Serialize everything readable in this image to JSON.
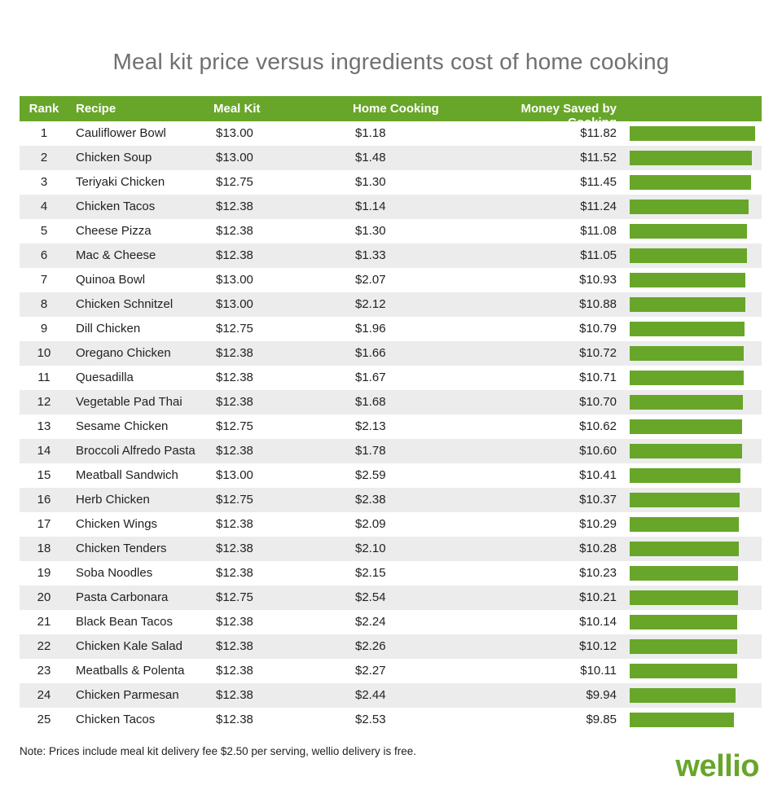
{
  "chart_data": {
    "type": "table",
    "title": "Meal kit price versus ingredients cost of home cooking",
    "columns": [
      "Rank",
      "Recipe",
      "Meal Kit",
      "Home Cooking",
      "Money Saved by Cooking"
    ],
    "rows": [
      {
        "rank": "1",
        "recipe": "Cauliflower Bowl",
        "meal_kit": "$13.00",
        "home": "$1.18",
        "saved": "$11.82",
        "saved_value": 11.82
      },
      {
        "rank": "2",
        "recipe": "Chicken Soup",
        "meal_kit": "$13.00",
        "home": "$1.48",
        "saved": "$11.52",
        "saved_value": 11.52
      },
      {
        "rank": "3",
        "recipe": "Teriyaki Chicken",
        "meal_kit": "$12.75",
        "home": "$1.30",
        "saved": "$11.45",
        "saved_value": 11.45
      },
      {
        "rank": "4",
        "recipe": "Chicken Tacos",
        "meal_kit": "$12.38",
        "home": "$1.14",
        "saved": "$11.24",
        "saved_value": 11.24
      },
      {
        "rank": "5",
        "recipe": "Cheese Pizza",
        "meal_kit": "$12.38",
        "home": "$1.30",
        "saved": "$11.08",
        "saved_value": 11.08
      },
      {
        "rank": "6",
        "recipe": "Mac & Cheese",
        "meal_kit": "$12.38",
        "home": "$1.33",
        "saved": "$11.05",
        "saved_value": 11.05
      },
      {
        "rank": "7",
        "recipe": "Quinoa Bowl",
        "meal_kit": "$13.00",
        "home": "$2.07",
        "saved": "$10.93",
        "saved_value": 10.93
      },
      {
        "rank": "8",
        "recipe": "Chicken Schnitzel",
        "meal_kit": "$13.00",
        "home": "$2.12",
        "saved": "$10.88",
        "saved_value": 10.88
      },
      {
        "rank": "9",
        "recipe": "Dill Chicken",
        "meal_kit": "$12.75",
        "home": "$1.96",
        "saved": "$10.79",
        "saved_value": 10.79
      },
      {
        "rank": "10",
        "recipe": "Oregano Chicken",
        "meal_kit": "$12.38",
        "home": "$1.66",
        "saved": "$10.72",
        "saved_value": 10.72
      },
      {
        "rank": "11",
        "recipe": "Quesadilla",
        "meal_kit": "$12.38",
        "home": "$1.67",
        "saved": "$10.71",
        "saved_value": 10.71
      },
      {
        "rank": "12",
        "recipe": "Vegetable Pad Thai",
        "meal_kit": "$12.38",
        "home": "$1.68",
        "saved": "$10.70",
        "saved_value": 10.7
      },
      {
        "rank": "13",
        "recipe": "Sesame Chicken",
        "meal_kit": "$12.75",
        "home": "$2.13",
        "saved": "$10.62",
        "saved_value": 10.62
      },
      {
        "rank": "14",
        "recipe": "Broccoli Alfredo Pasta",
        "meal_kit": "$12.38",
        "home": "$1.78",
        "saved": "$10.60",
        "saved_value": 10.6
      },
      {
        "rank": "15",
        "recipe": "Meatball Sandwich",
        "meal_kit": "$13.00",
        "home": "$2.59",
        "saved": "$10.41",
        "saved_value": 10.41
      },
      {
        "rank": "16",
        "recipe": "Herb Chicken",
        "meal_kit": "$12.75",
        "home": "$2.38",
        "saved": "$10.37",
        "saved_value": 10.37
      },
      {
        "rank": "17",
        "recipe": "Chicken Wings",
        "meal_kit": "$12.38",
        "home": "$2.09",
        "saved": "$10.29",
        "saved_value": 10.29
      },
      {
        "rank": "18",
        "recipe": "Chicken Tenders",
        "meal_kit": "$12.38",
        "home": "$2.10",
        "saved": "$10.28",
        "saved_value": 10.28
      },
      {
        "rank": "19",
        "recipe": "Soba Noodles",
        "meal_kit": "$12.38",
        "home": "$2.15",
        "saved": "$10.23",
        "saved_value": 10.23
      },
      {
        "rank": "20",
        "recipe": "Pasta Carbonara",
        "meal_kit": "$12.75",
        "home": "$2.54",
        "saved": "$10.21",
        "saved_value": 10.21
      },
      {
        "rank": "21",
        "recipe": "Black Bean Tacos",
        "meal_kit": "$12.38",
        "home": "$2.24",
        "saved": "$10.14",
        "saved_value": 10.14
      },
      {
        "rank": "22",
        "recipe": "Chicken Kale Salad",
        "meal_kit": "$12.38",
        "home": "$2.26",
        "saved": "$10.12",
        "saved_value": 10.12
      },
      {
        "rank": "23",
        "recipe": "Meatballs & Polenta",
        "meal_kit": "$12.38",
        "home": "$2.27",
        "saved": "$10.11",
        "saved_value": 10.11
      },
      {
        "rank": "24",
        "recipe": "Chicken Parmesan",
        "meal_kit": "$12.38",
        "home": "$2.44",
        "saved": "$9.94",
        "saved_value": 9.94
      },
      {
        "rank": "25",
        "recipe": "Chicken Tacos",
        "meal_kit": "$12.38",
        "home": "$2.53",
        "saved": "$9.85",
        "saved_value": 9.85
      }
    ],
    "bar_color": "#68a62a",
    "note": "Note: Prices include meal kit delivery fee $2.50 per serving, wellio delivery is free."
  },
  "brand": {
    "logo_text": "wellio",
    "color": "#68a62a"
  }
}
